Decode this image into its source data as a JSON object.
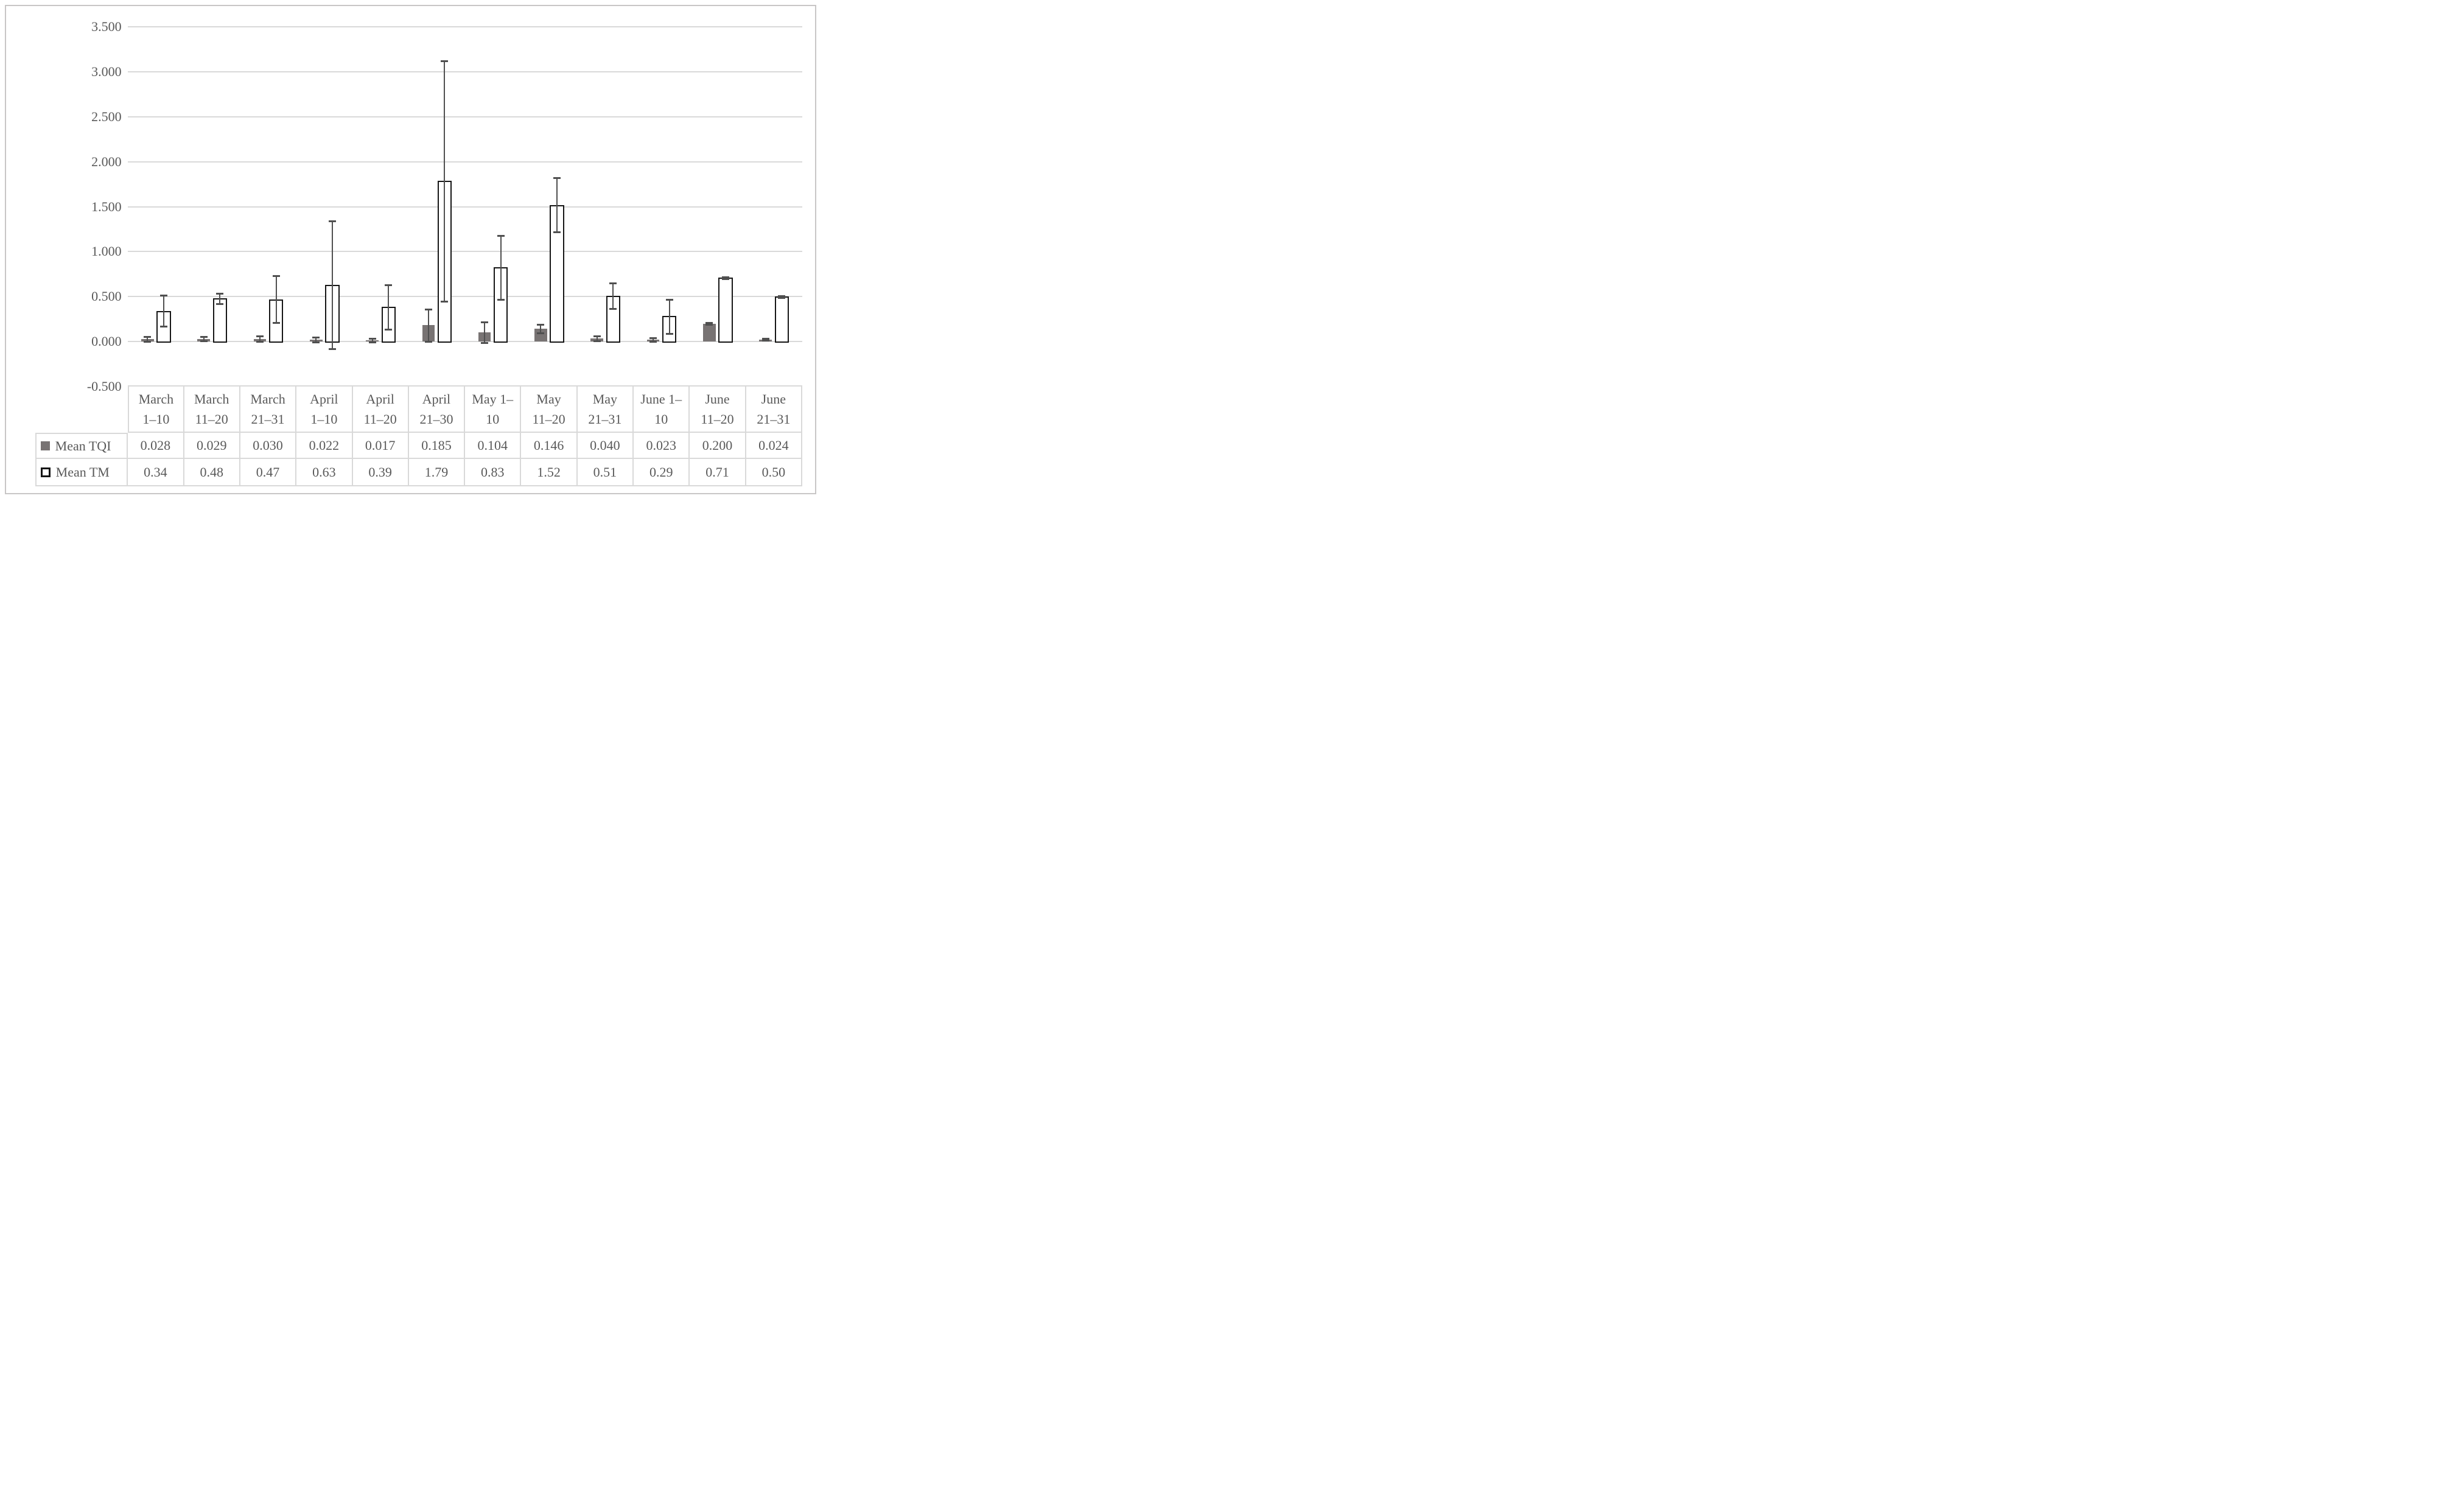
{
  "colors": {
    "text": "#595959",
    "gridline": "#d9d9d9",
    "axis_line": "#d9d9d9",
    "tqi_fill": "#787373",
    "tm_fill": "#ffffff",
    "tm_border": "#161616",
    "error_bar": "#4f4f4f",
    "table_border": "#d9d9d9",
    "figure_border": "#c8c6c6",
    "background": "#ffffff"
  },
  "y_axis": {
    "tick_labels": [
      "3.500",
      "3.000",
      "2.500",
      "2.000",
      "1.500",
      "1.000",
      "0.500",
      "0.000",
      "-0.500"
    ],
    "tick_values": [
      3.5,
      3.0,
      2.5,
      2.0,
      1.5,
      1.0,
      0.5,
      0.0,
      -0.5
    ],
    "min": -0.5,
    "max": 3.5,
    "step": 0.5
  },
  "chart_data": {
    "type": "bar",
    "title": "",
    "xlabel": "",
    "ylabel": "",
    "ylim": [
      -0.5,
      3.5
    ],
    "grid": true,
    "legend_position": "table-left",
    "categories": [
      "March 1–10",
      "March 11–20",
      "March 21–31",
      "April 1–10",
      "April 11–20",
      "April 21–30",
      "May 1–10",
      "May 11–20",
      "May 21–31",
      "June 1–10",
      "June 11–20",
      "June 21–31"
    ],
    "categories_lines": [
      [
        "March",
        "1–10"
      ],
      [
        "March",
        "11–20"
      ],
      [
        "March",
        "21–31"
      ],
      [
        "April",
        "1–10"
      ],
      [
        "April",
        "11–20"
      ],
      [
        "April",
        "21–30"
      ],
      [
        "May 1–",
        "10"
      ],
      [
        "May",
        "11–20"
      ],
      [
        "May",
        "21–31"
      ],
      [
        "June 1–",
        "10"
      ],
      [
        "June",
        "11–20"
      ],
      [
        "June",
        "21–31"
      ]
    ],
    "series": [
      {
        "name": "Mean TQI",
        "values": [
          0.028,
          0.029,
          0.03,
          0.022,
          0.017,
          0.185,
          0.104,
          0.146,
          0.04,
          0.023,
          0.2,
          0.024
        ],
        "value_labels": [
          "0.028",
          "0.029",
          "0.030",
          "0.022",
          "0.017",
          "0.185",
          "0.104",
          "0.146",
          "0.040",
          "0.023",
          "0.200",
          "0.024"
        ],
        "error_low": [
          0.0,
          0.01,
          0.0,
          -0.004,
          -0.002,
          0.005,
          -0.01,
          0.1,
          0.007,
          0.004,
          0.19,
          0.014
        ],
        "error_high": [
          0.057,
          0.057,
          0.061,
          0.048,
          0.036,
          0.36,
          0.22,
          0.19,
          0.065,
          0.042,
          0.21,
          0.034
        ]
      },
      {
        "name": "Mean TM",
        "values": [
          0.34,
          0.48,
          0.47,
          0.63,
          0.39,
          1.79,
          0.83,
          1.52,
          0.51,
          0.29,
          0.71,
          0.5
        ],
        "value_labels": [
          "0.34",
          "0.48",
          "0.47",
          "0.63",
          "0.39",
          "1.79",
          "0.83",
          "1.52",
          "0.51",
          "0.29",
          "0.71",
          "0.50"
        ],
        "error_low": [
          0.17,
          0.42,
          0.21,
          -0.08,
          0.14,
          0.45,
          0.47,
          1.22,
          0.37,
          0.09,
          0.7,
          0.49
        ],
        "error_high": [
          0.52,
          0.54,
          0.73,
          1.34,
          0.63,
          3.12,
          1.18,
          1.82,
          0.65,
          0.47,
          0.72,
          0.51
        ]
      }
    ]
  }
}
